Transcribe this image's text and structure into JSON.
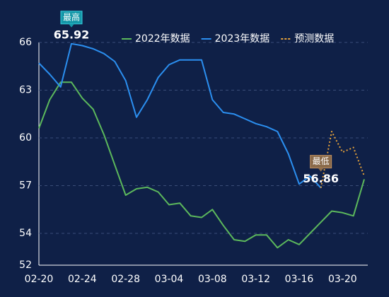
{
  "chart_data": {
    "type": "line",
    "categories": [
      "02-20",
      null,
      null,
      null,
      "02-24",
      null,
      null,
      null,
      "02-28",
      null,
      null,
      null,
      "03-04",
      null,
      null,
      null,
      "03-08",
      null,
      null,
      null,
      "03-12",
      null,
      null,
      null,
      "03-16",
      null,
      null,
      null,
      "03-20",
      null,
      null
    ],
    "series": [
      {
        "name": "2022年数据",
        "color": "#5cb85c",
        "line_style": "solid",
        "values": [
          60.6,
          62.4,
          63.5,
          63.5,
          62.5,
          61.8,
          60.2,
          58.3,
          56.4,
          56.8,
          56.9,
          56.6,
          55.8,
          55.9,
          55.1,
          55.0,
          55.5,
          54.5,
          53.6,
          53.5,
          53.9,
          53.9,
          53.1,
          53.6,
          53.3,
          54.0,
          54.7,
          55.4,
          55.3,
          55.1,
          57.4
        ]
      },
      {
        "name": "2023年数据",
        "color": "#2b8ff0",
        "line_style": "solid",
        "values": [
          64.7,
          64.0,
          63.2,
          65.92,
          65.8,
          65.6,
          65.3,
          64.8,
          63.6,
          61.3,
          62.4,
          63.8,
          64.6,
          64.9,
          64.9,
          64.9,
          62.4,
          61.6,
          61.5,
          61.2,
          60.9,
          60.7,
          60.4,
          59.0,
          57.1,
          57.6,
          56.86,
          null,
          null,
          null,
          null
        ]
      },
      {
        "name": "预测数据",
        "color": "#e8a33a",
        "line_style": "dotted",
        "values": [
          null,
          null,
          null,
          null,
          null,
          null,
          null,
          null,
          null,
          null,
          null,
          null,
          null,
          null,
          null,
          null,
          null,
          null,
          null,
          null,
          null,
          null,
          null,
          null,
          null,
          null,
          56.86,
          60.4,
          59.1,
          59.4,
          57.6
        ]
      }
    ],
    "annotations": {
      "max": "最高",
      "min": "最低"
    },
    "ylim": [
      52,
      66
    ],
    "yticks": [
      52,
      54,
      57,
      60,
      63,
      66
    ],
    "grid": true
  }
}
